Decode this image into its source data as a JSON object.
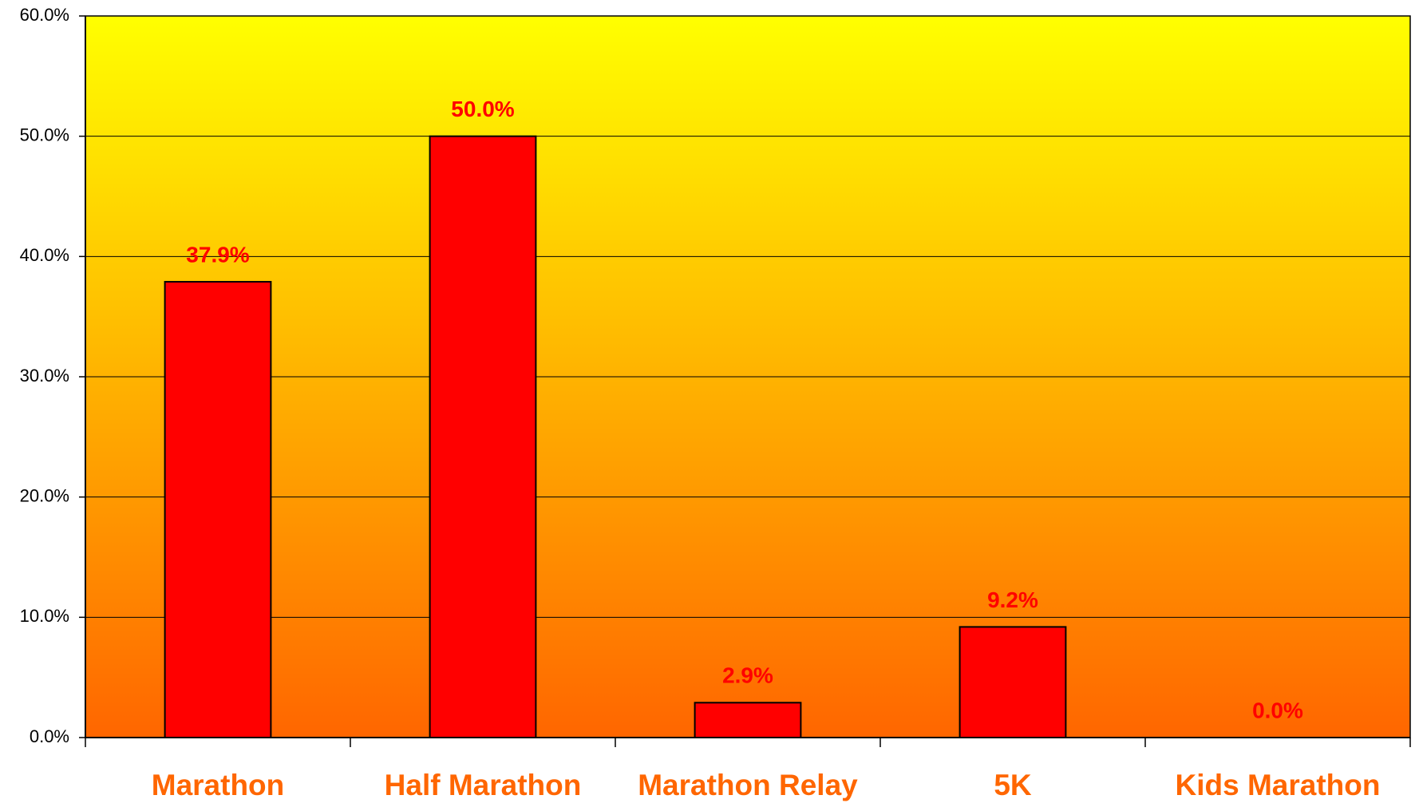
{
  "chart_data": {
    "type": "bar",
    "categories": [
      "Marathon",
      "Half Marathon",
      "Marathon Relay",
      "5K",
      "Kids Marathon"
    ],
    "values": [
      37.9,
      50.0,
      2.9,
      9.2,
      0.0
    ],
    "value_labels": [
      "37.9%",
      "50.0%",
      "2.9%",
      "9.2%",
      "0.0%"
    ],
    "color": "#ff0000",
    "ylim": [
      0,
      60
    ],
    "yticks": [
      {
        "value": 0,
        "label": "0.0%"
      },
      {
        "value": 10,
        "label": "10.0%"
      },
      {
        "value": 20,
        "label": "20.0%"
      },
      {
        "value": 30,
        "label": "30.0%"
      },
      {
        "value": 40,
        "label": "40.0%"
      },
      {
        "value": 50,
        "label": "50.0%"
      },
      {
        "value": 60,
        "label": "60.0%"
      }
    ],
    "grid": true
  }
}
